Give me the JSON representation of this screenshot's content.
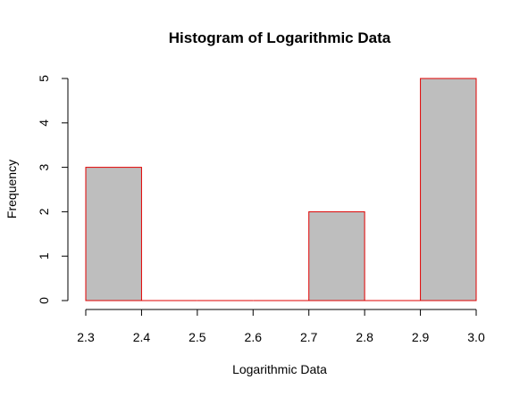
{
  "chart_data": {
    "type": "bar",
    "title": "Histogram of Logarithmic Data",
    "xlabel": "Logarithmic Data",
    "ylabel": "Frequency",
    "bins": [
      {
        "x0": 2.3,
        "x1": 2.4,
        "count": 3
      },
      {
        "x0": 2.4,
        "x1": 2.5,
        "count": 0
      },
      {
        "x0": 2.5,
        "x1": 2.6,
        "count": 0
      },
      {
        "x0": 2.6,
        "x1": 2.7,
        "count": 0
      },
      {
        "x0": 2.7,
        "x1": 2.8,
        "count": 2
      },
      {
        "x0": 2.8,
        "x1": 2.9,
        "count": 0
      },
      {
        "x0": 2.9,
        "x1": 3.0,
        "count": 5
      }
    ],
    "xlim": [
      2.3,
      3.0
    ],
    "ylim": [
      0,
      5
    ],
    "xticks": [
      "2.3",
      "2.4",
      "2.5",
      "2.6",
      "2.7",
      "2.8",
      "2.9",
      "3.0"
    ],
    "yticks": [
      "0",
      "1",
      "2",
      "3",
      "4",
      "5"
    ],
    "grid": false,
    "colors": {
      "bar_fill": "#bebebe",
      "bar_border": "#e00000"
    }
  }
}
